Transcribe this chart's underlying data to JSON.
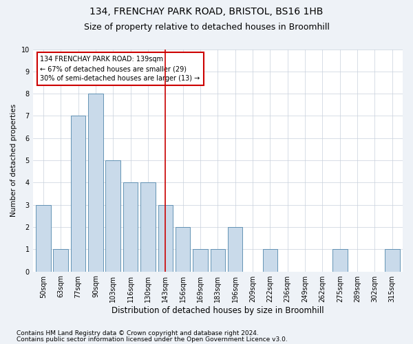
{
  "title1": "134, FRENCHAY PARK ROAD, BRISTOL, BS16 1HB",
  "title2": "Size of property relative to detached houses in Broomhill",
  "xlabel": "Distribution of detached houses by size in Broomhill",
  "ylabel": "Number of detached properties",
  "footnote1": "Contains HM Land Registry data © Crown copyright and database right 2024.",
  "footnote2": "Contains public sector information licensed under the Open Government Licence v3.0.",
  "bin_labels": [
    "50sqm",
    "63sqm",
    "77sqm",
    "90sqm",
    "103sqm",
    "116sqm",
    "130sqm",
    "143sqm",
    "156sqm",
    "169sqm",
    "183sqm",
    "196sqm",
    "209sqm",
    "222sqm",
    "236sqm",
    "249sqm",
    "262sqm",
    "275sqm",
    "289sqm",
    "302sqm",
    "315sqm"
  ],
  "bar_heights": [
    3,
    1,
    7,
    8,
    5,
    4,
    4,
    3,
    2,
    1,
    1,
    2,
    0,
    1,
    0,
    0,
    0,
    1,
    0,
    0,
    1
  ],
  "bar_color": "#c9daea",
  "bar_edge_color": "#4f86aa",
  "highlight_line_index": 7,
  "highlight_line_color": "#cc0000",
  "annotation_text": "134 FRENCHAY PARK ROAD: 139sqm\n← 67% of detached houses are smaller (29)\n30% of semi-detached houses are larger (13) →",
  "annotation_box_color": "#cc0000",
  "ylim": [
    0,
    10
  ],
  "yticks": [
    0,
    1,
    2,
    3,
    4,
    5,
    6,
    7,
    8,
    9,
    10
  ],
  "background_color": "#eef2f7",
  "plot_bg_color": "#ffffff",
  "grid_color": "#c8d0dc",
  "title1_fontsize": 10,
  "title2_fontsize": 9,
  "xlabel_fontsize": 8.5,
  "ylabel_fontsize": 7.5,
  "tick_fontsize": 7,
  "annotation_fontsize": 7,
  "footnote_fontsize": 6.5
}
